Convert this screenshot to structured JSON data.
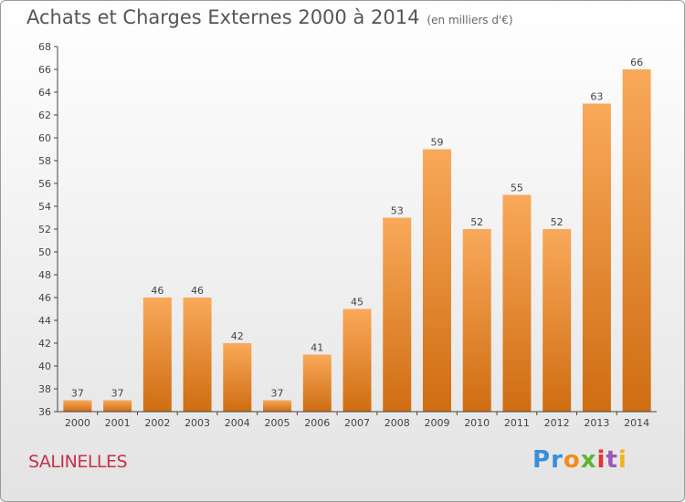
{
  "header": {
    "title": "Achats et Charges Externes 2000 à 2014",
    "unit": "(en milliers d'€)"
  },
  "footer": {
    "city": "SALINELLES",
    "logo": [
      "P",
      "r",
      "o",
      "x",
      "i",
      "t",
      "i"
    ],
    "logo_colors": [
      "#3a8fd6",
      "#3a8fd6",
      "#f28c1c",
      "#5bb532",
      "#e3342f",
      "#9b59b6",
      "#f2b31c"
    ]
  },
  "colors": {
    "bar_top": "#f9a95a",
    "bar_bottom": "#cf6d12",
    "axis": "#444444",
    "grid": "#cccccc"
  },
  "chart_data": {
    "type": "bar",
    "title": "Achats et Charges Externes 2000 à 2014",
    "categories": [
      "2000",
      "2001",
      "2002",
      "2003",
      "2004",
      "2005",
      "2006",
      "2007",
      "2008",
      "2009",
      "2010",
      "2011",
      "2012",
      "2013",
      "2014"
    ],
    "values": [
      37,
      37,
      46,
      46,
      42,
      37,
      41,
      45,
      53,
      59,
      52,
      55,
      52,
      63,
      66
    ],
    "ylim": [
      36,
      68
    ],
    "yticks": [
      36,
      38,
      40,
      42,
      44,
      46,
      48,
      50,
      52,
      54,
      56,
      58,
      60,
      62,
      64,
      66,
      68
    ],
    "grid": false
  }
}
